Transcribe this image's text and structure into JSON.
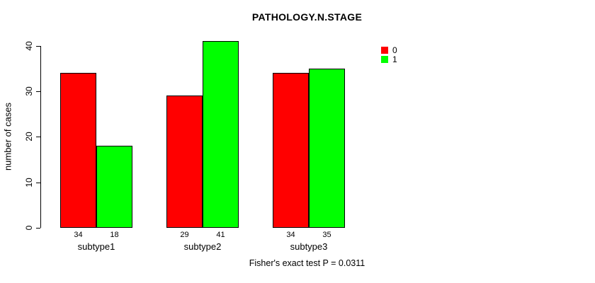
{
  "chart_data": {
    "type": "bar",
    "title": "PATHOLOGY.N.STAGE",
    "ylabel": "number of cases",
    "xlabel": "",
    "categories": [
      "subtype1",
      "subtype2",
      "subtype3"
    ],
    "series": [
      {
        "name": "0",
        "color": "#ff0000",
        "values": [
          34,
          29,
          34
        ]
      },
      {
        "name": "1",
        "color": "#00ff00",
        "values": [
          18,
          41,
          35
        ]
      }
    ],
    "bar_value_labels": [
      [
        "34",
        "18"
      ],
      [
        "29",
        "41"
      ],
      [
        "34",
        "35"
      ]
    ],
    "ylim": [
      0,
      40
    ],
    "yticks": [
      "0",
      "10",
      "20",
      "30",
      "40"
    ],
    "grid": false,
    "legend_position": "top-right",
    "annotation": "Fisher's exact test P = 0.0311",
    "colors": {
      "series_0": "#ff0000",
      "series_1": "#00ff00",
      "bar_border": "#000000",
      "axis": "#000000",
      "text": "#000000",
      "background": "#ffffff"
    }
  }
}
